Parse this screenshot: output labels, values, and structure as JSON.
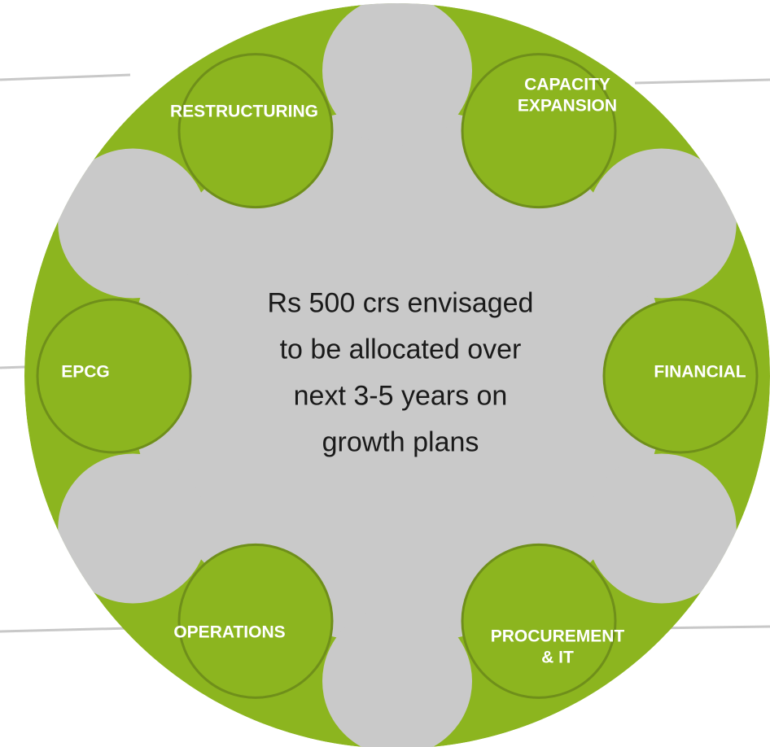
{
  "center_text": [
    "Rs 500 crs envisaged",
    "to be allocated over",
    "next 3-5 years on",
    "growth plans"
  ],
  "segments": [
    {
      "lines": [
        "RESTRUCTURING"
      ]
    },
    {
      "lines": [
        "CAPACITY",
        "EXPANSION"
      ]
    },
    {
      "lines": [
        "FINANCIAL"
      ]
    },
    {
      "lines": [
        "PROCUREMENT",
        "& IT"
      ]
    },
    {
      "lines": [
        "OPERATIONS"
      ]
    },
    {
      "lines": [
        "EPCG"
      ]
    }
  ]
}
